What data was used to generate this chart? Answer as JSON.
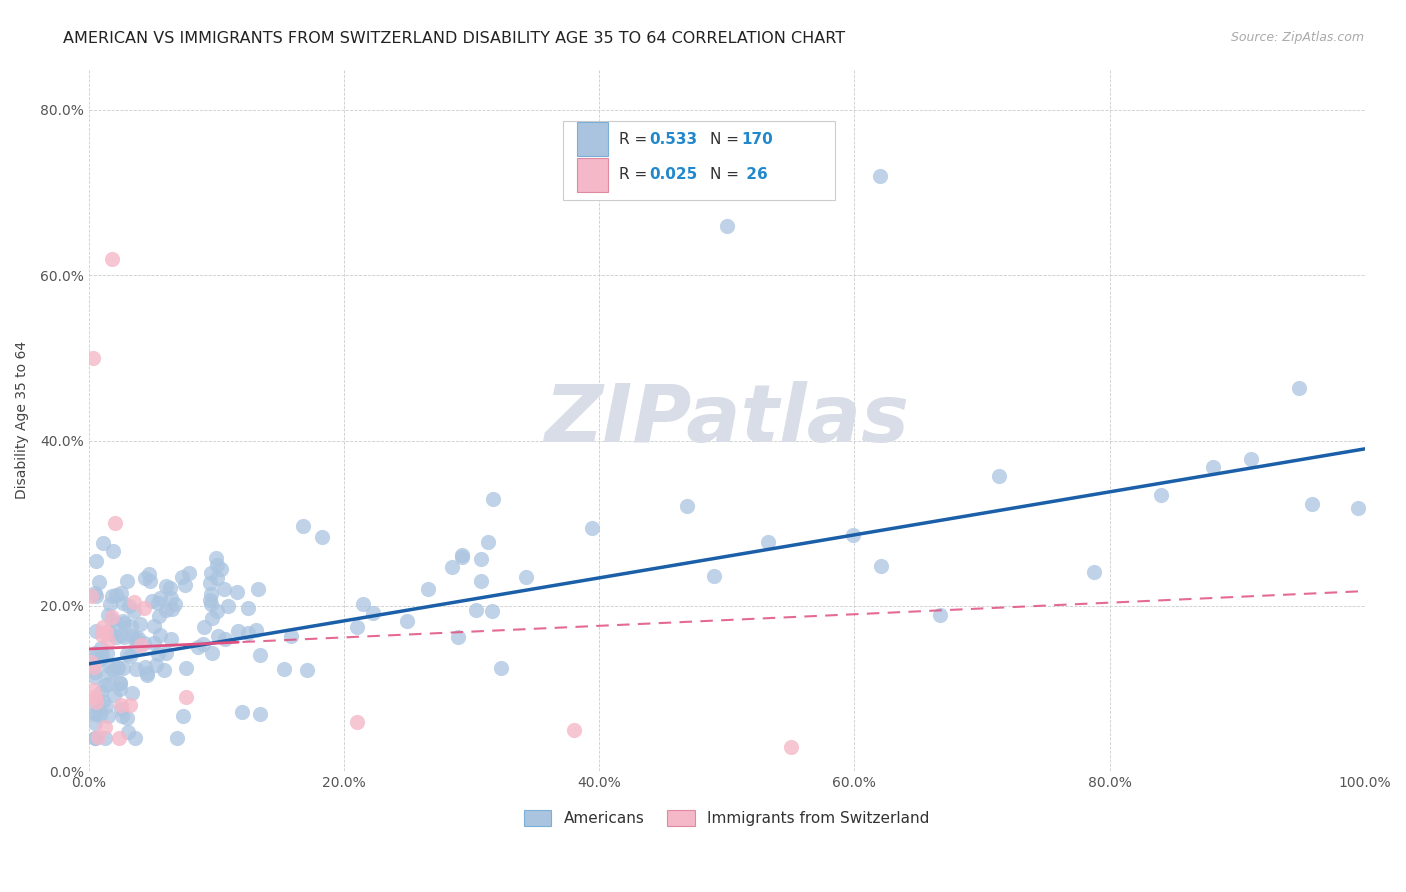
{
  "title": "AMERICAN VS IMMIGRANTS FROM SWITZERLAND DISABILITY AGE 35 TO 64 CORRELATION CHART",
  "source": "Source: ZipAtlas.com",
  "ylabel": "Disability Age 35 to 64",
  "xlim": [
    0,
    1.0
  ],
  "ylim": [
    0,
    0.85
  ],
  "x_tick_labels": [
    "0.0%",
    "20.0%",
    "40.0%",
    "60.0%",
    "80.0%",
    "100.0%"
  ],
  "y_tick_labels": [
    "0.0%",
    "20.0%",
    "40.0%",
    "60.0%",
    "80.0%"
  ],
  "americans_color": "#aac4e0",
  "swiss_color": "#f5b8c8",
  "americans_line_color": "#1a5fa8",
  "swiss_line_color": "#e05080",
  "watermark_color": "#d8dde8",
  "background_color": "#ffffff",
  "grid_color": "#cccccc",
  "title_fontsize": 11.5,
  "axis_label_fontsize": 10,
  "tick_fontsize": 10
}
